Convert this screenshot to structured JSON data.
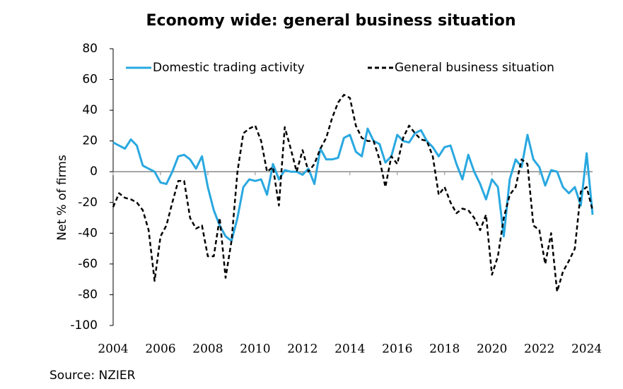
{
  "chart_data": {
    "type": "line",
    "title": "Economy wide: general business situation",
    "y_label": "Net % of firms",
    "source": "Source: NZIER",
    "x": [
      2004,
      2004.25,
      2004.5,
      2004.75,
      2005,
      2005.25,
      2005.5,
      2005.75,
      2006,
      2006.25,
      2006.5,
      2006.75,
      2007,
      2007.25,
      2007.5,
      2007.75,
      2008,
      2008.25,
      2008.5,
      2008.75,
      2009,
      2009.25,
      2009.5,
      2009.75,
      2010,
      2010.25,
      2010.5,
      2010.75,
      2011,
      2011.25,
      2011.5,
      2011.75,
      2012,
      2012.25,
      2012.5,
      2012.75,
      2013,
      2013.25,
      2013.5,
      2013.75,
      2014,
      2014.25,
      2014.5,
      2014.75,
      2015,
      2015.25,
      2015.5,
      2015.75,
      2016,
      2016.25,
      2016.5,
      2016.75,
      2017,
      2017.25,
      2017.5,
      2017.75,
      2018,
      2018.25,
      2018.5,
      2018.75,
      2019,
      2019.25,
      2019.5,
      2019.75,
      2020,
      2020.25,
      2020.5,
      2020.75,
      2021,
      2021.25,
      2021.5,
      2021.75,
      2022,
      2022.25,
      2022.5,
      2022.75,
      2023,
      2023.25,
      2023.5,
      2023.75,
      2024,
      2024.25
    ],
    "series": [
      {
        "name": "Domestic trading activity",
        "color": "#29a8e0",
        "style": "solid",
        "values": [
          19,
          17,
          15,
          21,
          17,
          4,
          2,
          0,
          -7,
          -8,
          0,
          10,
          11,
          8,
          2,
          10,
          -10,
          -25,
          -35,
          -42,
          -45,
          -30,
          -10,
          -5,
          -6,
          -5,
          -15,
          5,
          -5,
          1,
          0,
          0,
          -2,
          2,
          -8,
          15,
          8,
          8,
          9,
          22,
          24,
          13,
          10,
          28,
          20,
          18,
          6,
          10,
          24,
          20,
          19,
          25,
          27,
          20,
          16,
          10,
          16,
          17,
          5,
          -5,
          11,
          0,
          -8,
          -18,
          -5,
          -10,
          -42,
          -5,
          8,
          3,
          24,
          8,
          3,
          -9,
          1,
          0,
          -10,
          -14,
          -10,
          -22,
          12,
          -28
        ]
      },
      {
        "name": "General business situation",
        "color": "#000000",
        "style": "dashed",
        "values": [
          -23,
          -14,
          -17,
          -18,
          -20,
          -25,
          -38,
          -71,
          -42,
          -35,
          -20,
          -6,
          -6,
          -30,
          -37,
          -35,
          -55,
          -55,
          -30,
          -69,
          -45,
          0,
          25,
          28,
          30,
          20,
          0,
          3,
          -22,
          29,
          15,
          0,
          14,
          0,
          5,
          15,
          22,
          35,
          45,
          50,
          48,
          30,
          22,
          20,
          20,
          8,
          -10,
          10,
          5,
          22,
          30,
          25,
          21,
          20,
          10,
          -15,
          -10,
          -20,
          -27,
          -24,
          -25,
          -30,
          -38,
          -28,
          -67,
          -55,
          -30,
          -15,
          -10,
          8,
          5,
          -35,
          -38,
          -60,
          -40,
          -78,
          -65,
          -58,
          -50,
          -13,
          -10,
          -25
        ]
      }
    ],
    "xlim": [
      2004,
      2024.25
    ],
    "xticks": [
      2004,
      2006,
      2008,
      2010,
      2012,
      2014,
      2016,
      2018,
      2020,
      2022,
      2024
    ],
    "ylim": [
      -100,
      80
    ],
    "yticks": [
      -100,
      -80,
      -60,
      -40,
      -20,
      0,
      20,
      40,
      60,
      80
    ],
    "legend": "top"
  }
}
